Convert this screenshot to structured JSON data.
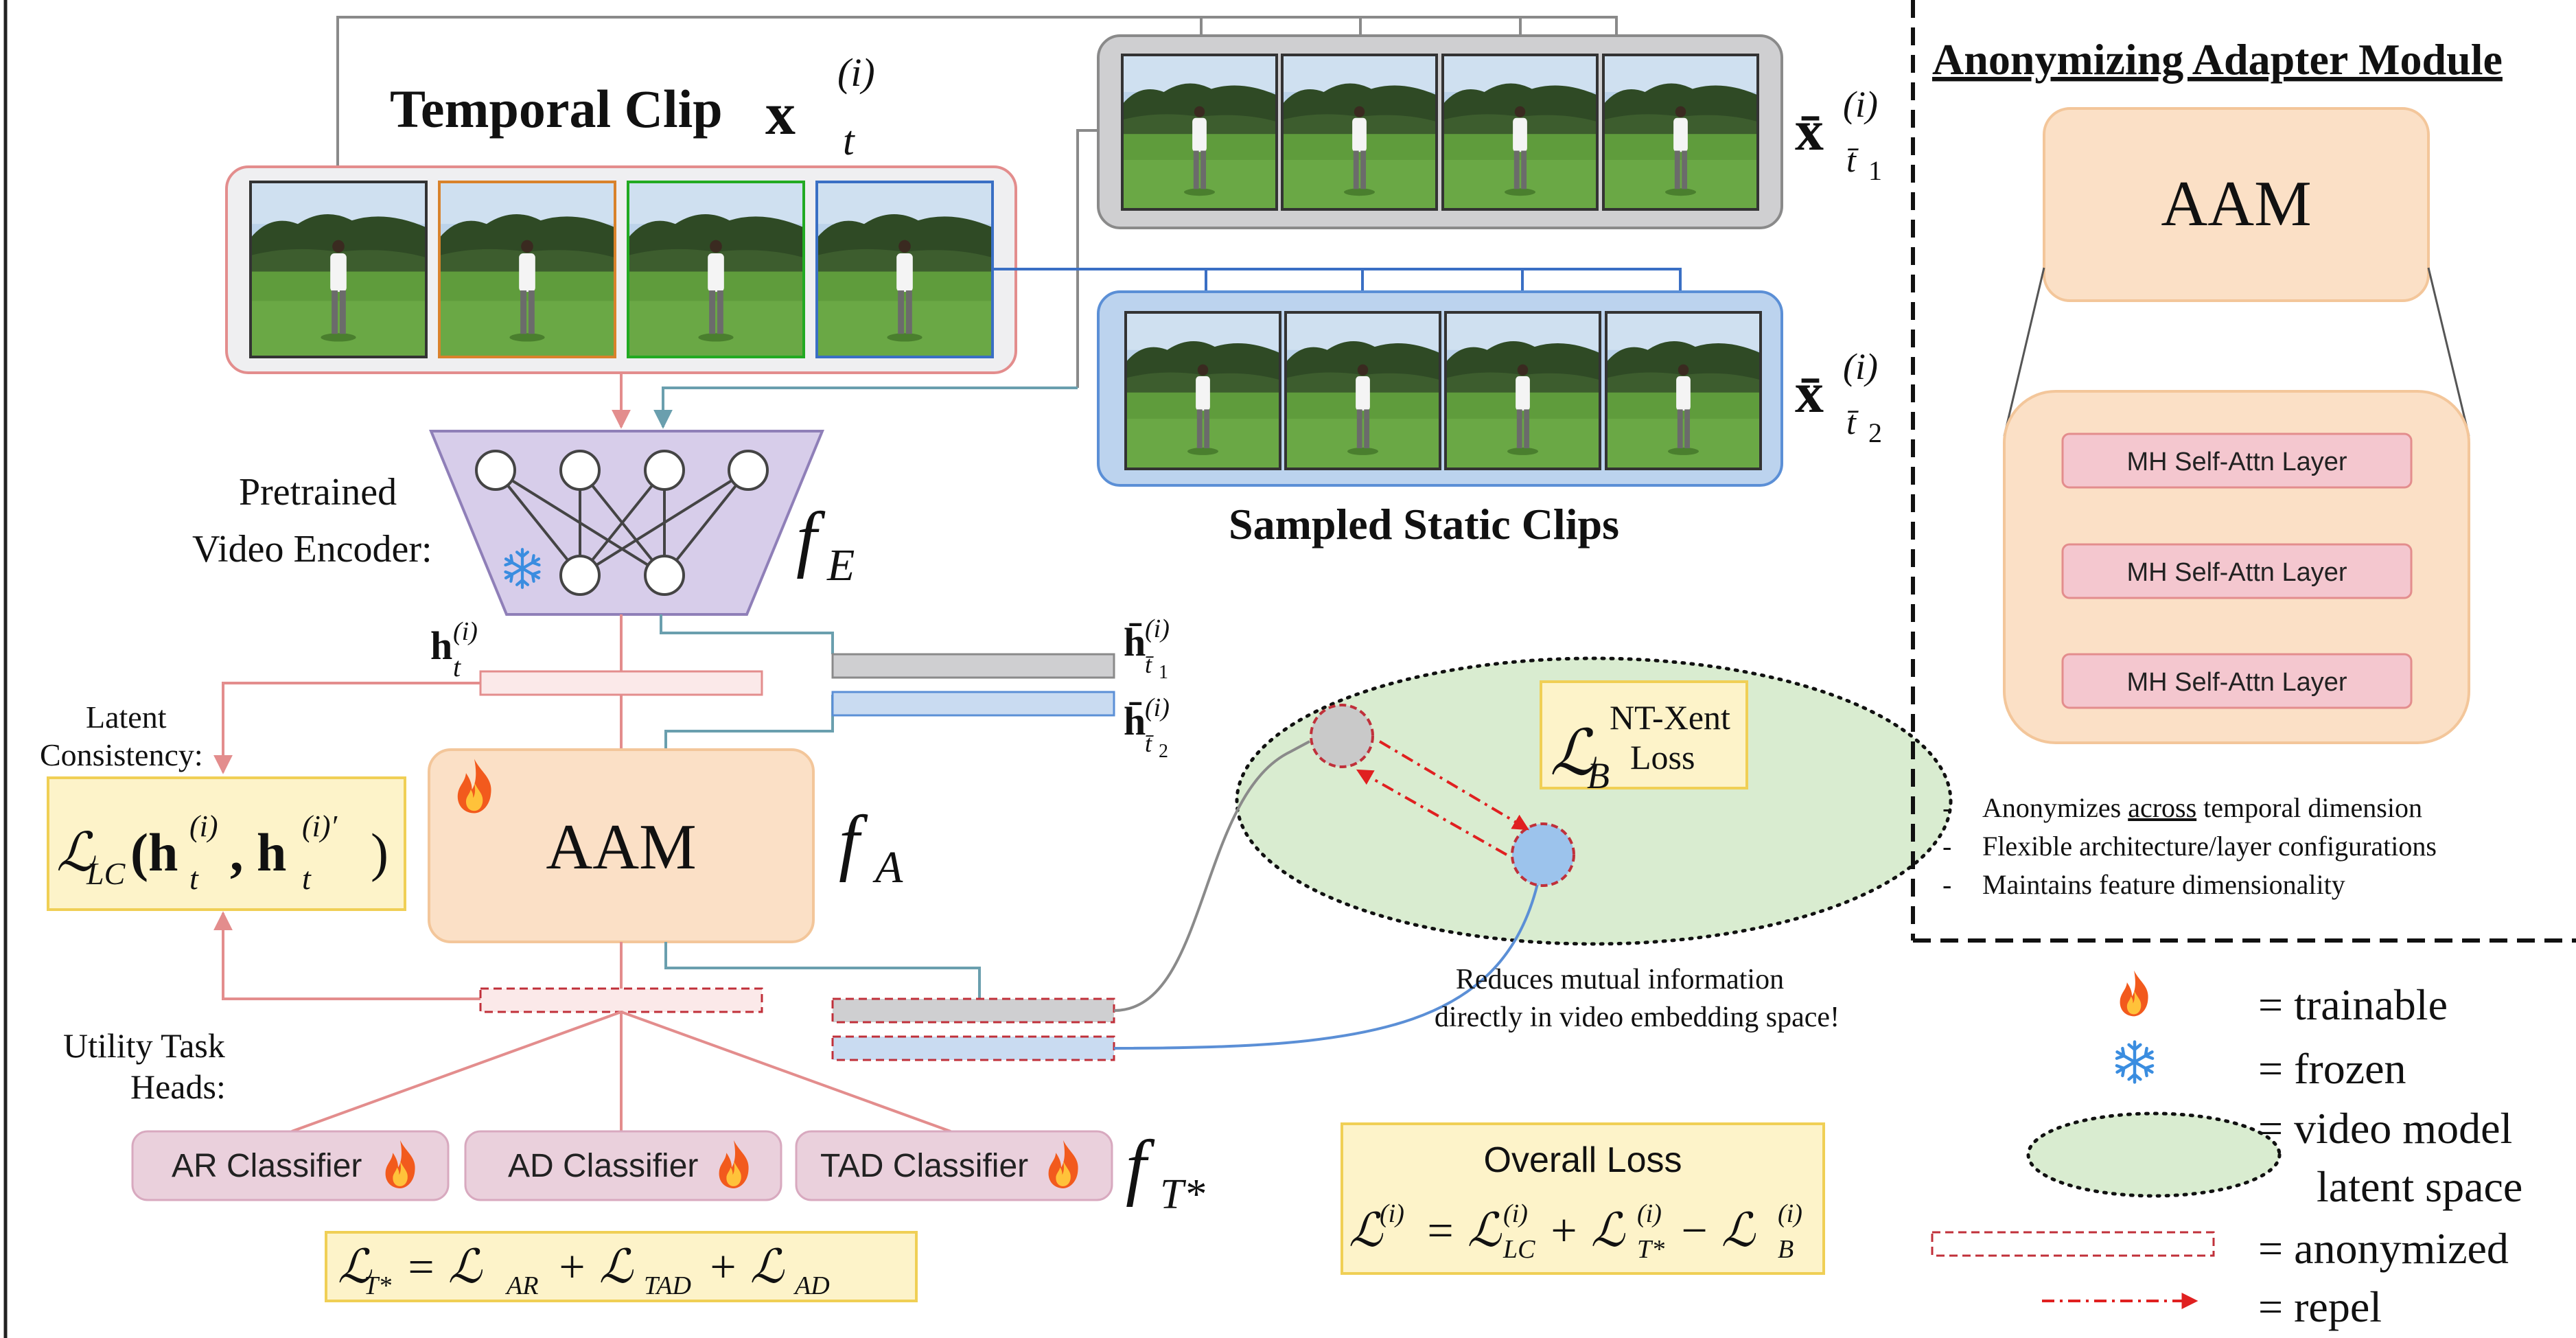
{
  "temporal": {
    "title": "Temporal Clip",
    "symbol": "x",
    "sub": "t",
    "sup": "(i)"
  },
  "static_clips": {
    "label": "Sampled Static Clips",
    "clip1": {
      "symbol": "x̄",
      "sub": "t̄",
      "sub2": "1",
      "sup": "(i)"
    },
    "clip2": {
      "symbol": "x̄",
      "sub": "t̄",
      "sub2": "2",
      "sup": "(i)"
    }
  },
  "encoder": {
    "label_line1": "Pretrained",
    "label_line2": "Video Encoder:",
    "f": "f",
    "f_sub": "E"
  },
  "embeddings": {
    "h_temporal": {
      "symbol": "h",
      "sub": "t",
      "sup": "(i)"
    },
    "h_static1": {
      "symbol": "h̄",
      "sub": "t̄",
      "sub2": "1",
      "sup": "(i)"
    },
    "h_static2": {
      "symbol": "h̄",
      "sub": "t̄",
      "sub2": "2",
      "sup": "(i)"
    }
  },
  "latent_consistency": {
    "label_line1": "Latent",
    "label_line2": "Consistency:",
    "formula_L": "ℒ",
    "formula_sub": "LC",
    "formula_args": "(h",
    "formula_sup1": "(i)",
    "formula_sub1": "t",
    "formula_mid": ", h",
    "formula_sup2": "(i)′",
    "formula_sub2": "t",
    "formula_close": ")"
  },
  "aam_main": {
    "label": "AAM",
    "f": "f",
    "f_sub": "A"
  },
  "utility": {
    "label_line1": "Utility Task",
    "label_line2": "Heads:",
    "classifiers": [
      "AR Classifier",
      "AD Classifier",
      "TAD Classifier"
    ],
    "f": "f",
    "f_sub": "T*",
    "loss_L": "ℒ",
    "loss_sub": "T*",
    "loss_rhs": "= ℒ",
    "loss_rhs_sub1": "AR",
    "loss_plus1": "+ ℒ",
    "loss_rhs_sub2": "TAD",
    "loss_plus2": "+ ℒ",
    "loss_rhs_sub3": "AD"
  },
  "latent_space": {
    "loss_L": "ℒ",
    "loss_sub": "B",
    "loss_name_line1": "NT-Xent",
    "loss_name_line2": "Loss",
    "caption_line1": "Reduces mutual information",
    "caption_line2": "directly in video embedding space!"
  },
  "overall_loss": {
    "title": "Overall Loss",
    "L": "ℒ",
    "sup": "(i)",
    "eq": "= ℒ",
    "sub1": "LC",
    "plus": "+ ℒ",
    "sub2": "T*",
    "minus": "− ℒ",
    "sub3": "B"
  },
  "adapter_module": {
    "title": "Anonymizing Adapter Module",
    "aam_label": "AAM",
    "layers": [
      "MH Self-Attn Layer",
      "MH Self-Attn Layer",
      "MH Self-Attn Layer"
    ],
    "bullets": [
      {
        "pre": "Anonymizes ",
        "underlined": "across",
        "post": " temporal dimension"
      },
      {
        "pre": "Flexible architecture/layer configurations",
        "underlined": "",
        "post": ""
      },
      {
        "pre": "Maintains feature dimensionality",
        "underlined": "",
        "post": ""
      }
    ]
  },
  "legend": {
    "trainable": "= trainable",
    "frozen": "= frozen",
    "latent_line1": "=  video model",
    "latent_line2": "latent space",
    "anonymized": "= anonymized",
    "repel": "= repel"
  },
  "colors": {
    "temporal_frame_borders": [
      "#333333",
      "#d9822b",
      "#22aa22",
      "#3a6fc4"
    ],
    "pink_stroke": "#e38d8d",
    "blue_stroke": "#5b8fd6",
    "gray_stroke": "#8a8a8a",
    "teal_stroke": "#6a9fae",
    "encoder_fill": "#d7cdea",
    "aam_fill": "#fbe0c6",
    "classifier_fill": "#ead0dc",
    "formula_fill": "#fdf3c9",
    "formula_stroke": "#f0cf55",
    "latent_fill": "#d9ecd0",
    "repel_red": "#e02020"
  },
  "icons": {
    "trainable": "flame-icon",
    "frozen": "snowflake-icon",
    "repel": "dashdot-arrow-icon"
  }
}
